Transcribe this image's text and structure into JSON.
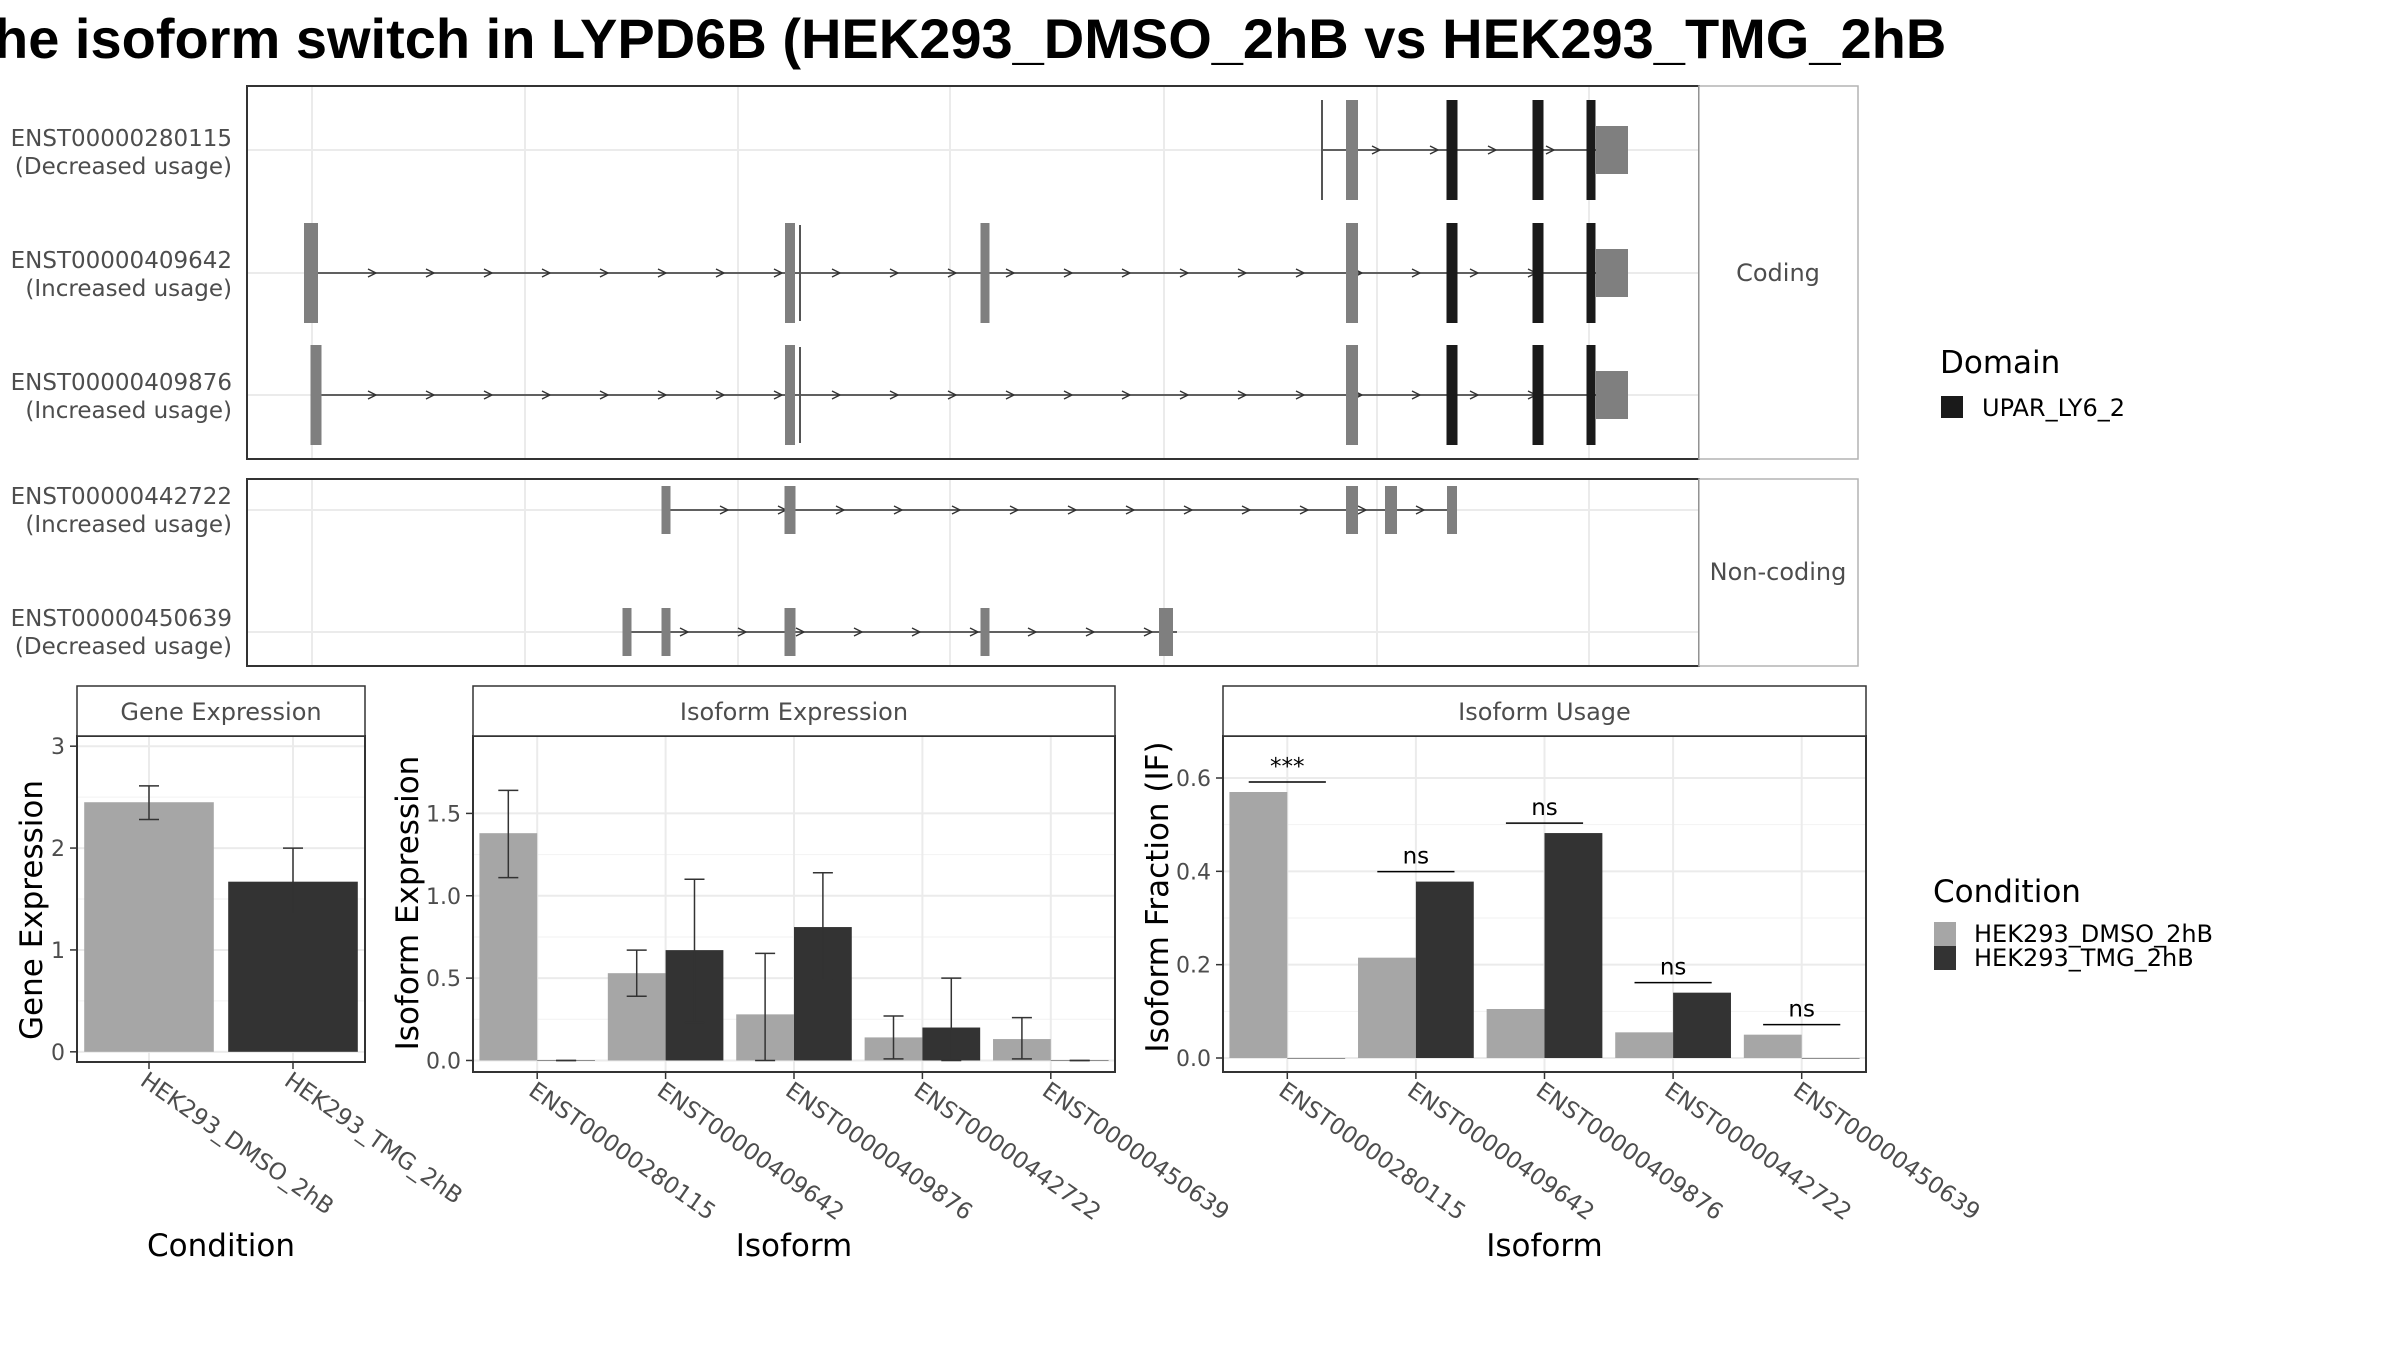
{
  "title": "he isoform switch in LYPD6B (HEK293_DMSO_2hB vs HEK293_TMG_2hB",
  "colors": {
    "dmso": "#a6a6a6",
    "tmg": "#333333",
    "exon": "#7f7f7f",
    "domain": "#1a1a1a",
    "grid": "#ebebeb"
  },
  "transcripts": {
    "panels": [
      {
        "strip": "Coding",
        "rows": [
          {
            "id": "ENST00000280115",
            "usage": "(Decreased usage)"
          },
          {
            "id": "ENST00000409642",
            "usage": "(Increased usage)"
          },
          {
            "id": "ENST00000409876",
            "usage": "(Increased usage)"
          }
        ]
      },
      {
        "strip": "Non-coding",
        "rows": [
          {
            "id": "ENST00000442722",
            "usage": "(Increased usage)"
          },
          {
            "id": "ENST00000450639",
            "usage": "(Decreased usage)"
          }
        ]
      }
    ]
  },
  "legends": {
    "domain_title": "Domain",
    "domain_item": "UPAR_LY6_2",
    "condition_title": "Condition",
    "condition_items": [
      "HEK293_DMSO_2hB",
      "HEK293_TMG_2hB"
    ]
  },
  "chart_data": [
    {
      "type": "bar",
      "title": "Gene Expression",
      "xlabel": "Condition",
      "ylabel": "Gene Expression",
      "categories": [
        "HEK293_DMSO_2hB",
        "HEK293_TMG_2hB"
      ],
      "values": [
        2.45,
        1.67
      ],
      "errors": [
        [
          2.28,
          2.61
        ],
        [
          1.35,
          2.0
        ]
      ],
      "ylim": [
        -0.1,
        3.1
      ],
      "yticks": [
        0,
        1,
        2,
        3
      ],
      "grid": true
    },
    {
      "type": "bar",
      "title": "Isoform Expression",
      "xlabel": "Isoform",
      "ylabel": "Isoform Expression",
      "categories": [
        "ENST00000280115",
        "ENST00000409642",
        "ENST00000409876",
        "ENST00000442722",
        "ENST00000450639"
      ],
      "series": [
        {
          "name": "HEK293_DMSO_2hB",
          "values": [
            1.38,
            0.53,
            0.28,
            0.14,
            0.13
          ],
          "errors": [
            [
              1.11,
              1.64
            ],
            [
              0.39,
              0.67
            ],
            [
              0.0,
              0.65
            ],
            [
              0.01,
              0.27
            ],
            [
              0.01,
              0.26
            ]
          ]
        },
        {
          "name": "HEK293_TMG_2hB",
          "values": [
            0.0,
            0.67,
            0.81,
            0.2,
            0.0
          ],
          "errors": [
            [
              0.0,
              0.0
            ],
            [
              0.23,
              1.1
            ],
            [
              0.49,
              1.14
            ],
            [
              0.0,
              0.5
            ],
            [
              0.0,
              0.0
            ]
          ]
        }
      ],
      "ylim": [
        -0.07,
        1.97
      ],
      "yticks": [
        0.0,
        0.5,
        1.0,
        1.5
      ],
      "grid": true
    },
    {
      "type": "bar",
      "title": "Isoform Usage",
      "xlabel": "Isoform",
      "ylabel": "Isoform Fraction (IF)",
      "categories": [
        "ENST00000280115",
        "ENST00000409642",
        "ENST00000409876",
        "ENST00000442722",
        "ENST00000450639"
      ],
      "series": [
        {
          "name": "HEK293_DMSO_2hB",
          "values": [
            0.57,
            0.215,
            0.105,
            0.055,
            0.05
          ]
        },
        {
          "name": "HEK293_TMG_2hB",
          "values": [
            0.0,
            0.378,
            0.482,
            0.14,
            0.0
          ]
        }
      ],
      "significance": [
        "***",
        "ns",
        "ns",
        "ns",
        "ns"
      ],
      "ylim": [
        -0.03,
        0.69
      ],
      "yticks": [
        0.0,
        0.2,
        0.4,
        0.6
      ],
      "grid": true
    }
  ]
}
